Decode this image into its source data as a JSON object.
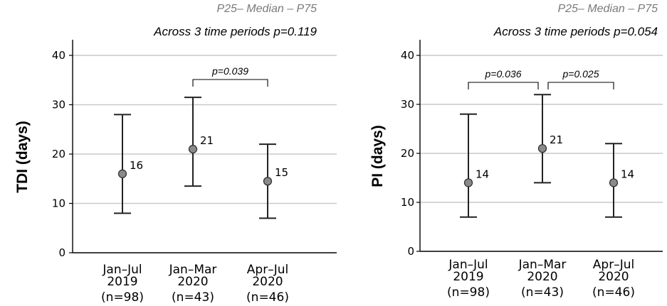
{
  "chart_data": [
    {
      "type": "errorbar",
      "legend": "P25– Median – P75",
      "overall_note": "Across 3 time periods p=0.119",
      "ylabel": "TDI (days)",
      "ylim": [
        0,
        40
      ],
      "yticks": [
        "0",
        "10",
        "20",
        "30",
        "40"
      ],
      "grid": true,
      "categories": [
        {
          "line1": "Jan–Jul",
          "line2": "2019",
          "n": "(n=98)"
        },
        {
          "line1": "Jan–Mar",
          "line2": "2020",
          "n": "(n=43)"
        },
        {
          "line1": "Apr–Jul",
          "line2": "2020",
          "n": "(n=46)"
        }
      ],
      "series": [
        {
          "values": [
            16,
            21,
            14.5
          ],
          "labels": [
            "16",
            "21",
            "15"
          ],
          "p25": [
            8,
            13.5,
            7
          ],
          "p75": [
            28,
            31.5,
            22
          ]
        }
      ],
      "comparisons": [
        {
          "from": 1,
          "to": 2,
          "label": "p=0.039"
        }
      ]
    },
    {
      "type": "errorbar",
      "legend": "P25– Median – P75",
      "overall_note": "Across 3 time periods p=0.054",
      "ylabel": "PI (days)",
      "ylim": [
        0,
        40
      ],
      "yticks": [
        "0",
        "10",
        "20",
        "30",
        "40"
      ],
      "grid": true,
      "categories": [
        {
          "line1": "Jan–Jul",
          "line2": "2019",
          "n": "(n=98)"
        },
        {
          "line1": "Jan–Mar",
          "line2": "2020",
          "n": "(n=43)"
        },
        {
          "line1": "Apr–Jul",
          "line2": "2020",
          "n": "(n=46)"
        }
      ],
      "series": [
        {
          "values": [
            14,
            21,
            14
          ],
          "labels": [
            "14",
            "21",
            "14"
          ],
          "p25": [
            7,
            14,
            7
          ],
          "p75": [
            28,
            32,
            22
          ]
        }
      ],
      "comparisons": [
        {
          "from": 0,
          "to": 1,
          "label": "p=0.036"
        },
        {
          "from": 1,
          "to": 2,
          "label": "p=0.025"
        }
      ]
    }
  ]
}
